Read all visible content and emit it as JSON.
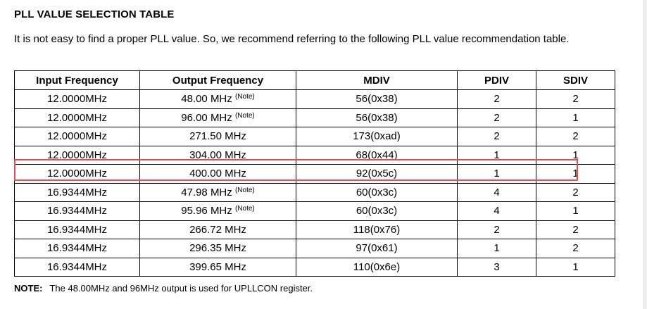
{
  "title": "PLL VALUE SELECTION TABLE",
  "intro": "It is not easy to find a proper PLL value. So, we recommend referring to the following PLL value recommendation table.",
  "table": {
    "headers": [
      "Input Frequency",
      "Output Frequency",
      "MDIV",
      "PDIV",
      "SDIV"
    ],
    "note_marker": "(Note)",
    "rows": [
      {
        "input": "12.0000MHz",
        "output": "48.00 MHz",
        "note": "(Note)",
        "mdiv": "56(0x38)",
        "pdiv": "2",
        "sdiv": "2"
      },
      {
        "input": "12.0000MHz",
        "output": "96.00 MHz",
        "note": "(Note)",
        "mdiv": "56(0x38)",
        "pdiv": "2",
        "sdiv": "1"
      },
      {
        "input": "12.0000MHz",
        "output": "271.50 MHz",
        "note": "",
        "mdiv": "173(0xad)",
        "pdiv": "2",
        "sdiv": "2"
      },
      {
        "input": "12.0000MHz",
        "output": "304.00 MHz",
        "note": "",
        "mdiv": "68(0x44)",
        "pdiv": "1",
        "sdiv": "1"
      },
      {
        "input": "12.0000MHz",
        "output": "400.00 MHz",
        "note": "",
        "mdiv": "92(0x5c)",
        "pdiv": "1",
        "sdiv": "1",
        "highlighted": true
      },
      {
        "input": "16.9344MHz",
        "output": "47.98 MHz",
        "note": "(Note)",
        "mdiv": "60(0x3c)",
        "pdiv": "4",
        "sdiv": "2"
      },
      {
        "input": "16.9344MHz",
        "output": "95.96 MHz",
        "note": "(Note)",
        "mdiv": "60(0x3c)",
        "pdiv": "4",
        "sdiv": "1"
      },
      {
        "input": "16.9344MHz",
        "output": "266.72 MHz",
        "note": "",
        "mdiv": "118(0x76)",
        "pdiv": "2",
        "sdiv": "2"
      },
      {
        "input": "16.9344MHz",
        "output": "296.35 MHz",
        "note": "",
        "mdiv": "97(0x61)",
        "pdiv": "1",
        "sdiv": "2"
      },
      {
        "input": "16.9344MHz",
        "output": "399.65 MHz",
        "note": "",
        "mdiv": "110(0x6e)",
        "pdiv": "3",
        "sdiv": "1"
      }
    ]
  },
  "footnote": {
    "label": "NOTE:",
    "text": "The 48.00MHz and 96MHz output is used for UPLLCON register."
  },
  "colors": {
    "highlight_border": "#e05252"
  }
}
